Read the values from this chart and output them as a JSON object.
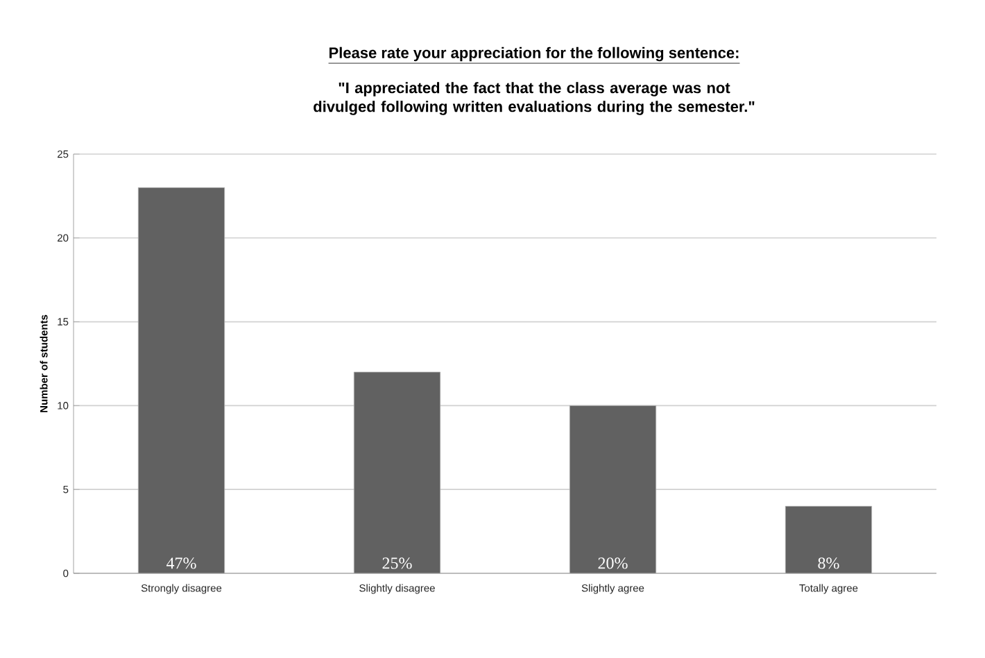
{
  "chart_data": {
    "type": "bar",
    "title": "Please rate your appreciation for the following sentence:",
    "subtitle": "\"I appreciated the fact that the class average was not divulged following written evaluations during the semester.\"",
    "ylabel": "Number of students",
    "categories": [
      "Strongly disagree",
      "Slightly disagree",
      "Slightly agree",
      "Totally agree"
    ],
    "values": [
      23,
      12,
      10,
      4
    ],
    "annotations": [
      {
        "text": "47%",
        "x": "Strongly disagree",
        "y": 0
      },
      {
        "text": "25%",
        "x": "Slightly disagree",
        "y": 0
      },
      {
        "text": "20%",
        "x": "Slightly agree",
        "y": 0
      },
      {
        "text": "8%",
        "x": "Totally agree",
        "y": 0
      }
    ],
    "color": "#616161",
    "ylim": [
      0,
      25
    ],
    "yticks": [
      0,
      5,
      10,
      15,
      20,
      25
    ],
    "grid": "y"
  }
}
